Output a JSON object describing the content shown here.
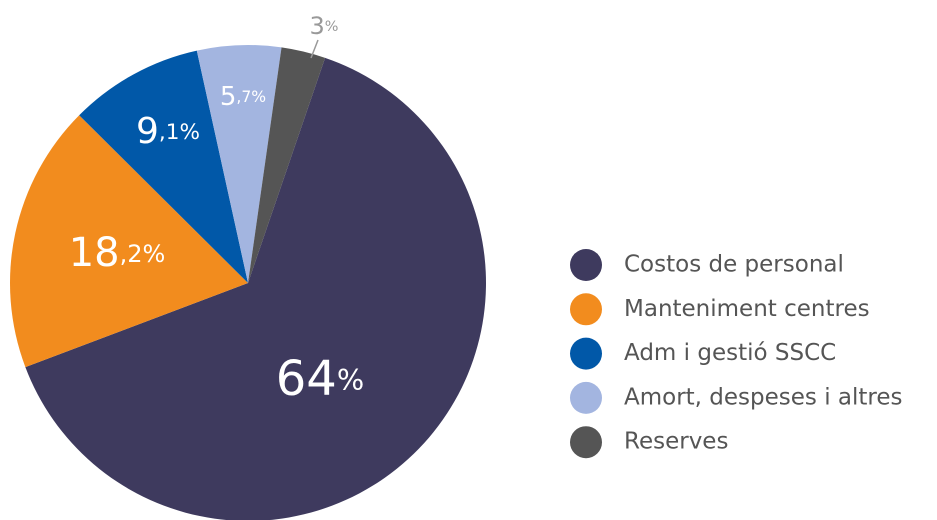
{
  "chart_data": {
    "type": "pie",
    "categories": [
      "Costos de personal",
      "Manteniment centres",
      "Adm i gestió SSCC",
      "Amort, despeses i altres",
      "Reserves"
    ],
    "values": [
      64,
      18.2,
      9.1,
      5.7,
      3
    ],
    "value_labels": [
      "64%",
      "18,2%",
      "9,1%",
      "5,7%",
      "3%"
    ],
    "colors": [
      "#3e3a5e",
      "#f28c1e",
      "#0158a8",
      "#a3b5e0",
      "#555555"
    ],
    "legend": "right"
  }
}
